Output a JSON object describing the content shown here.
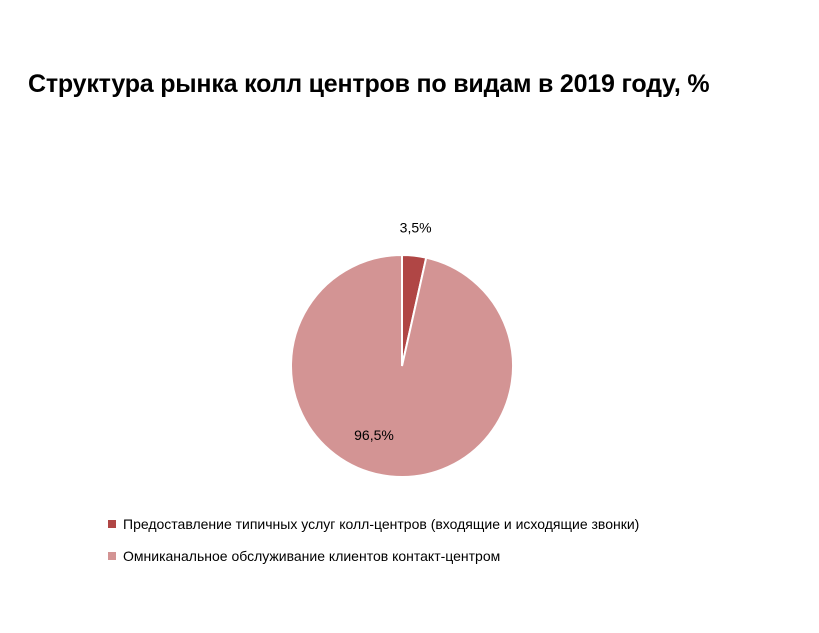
{
  "chart_data": {
    "type": "pie",
    "title": "Структура рынка колл центров по видам в 2019 году, %",
    "slices": [
      {
        "name": "Предоставление типичных услуг колл-центров (входящие и исходящие звонки)",
        "value": 3.5,
        "label": "3,5%",
        "color": "#b04645"
      },
      {
        "name": "Омниканальное обслуживание клиентов контакт-центром",
        "value": 96.5,
        "label": "96,5%",
        "color": "#d39494"
      }
    ],
    "start_angle": "12 o'clock, clockwise",
    "legend": "bottom-left"
  }
}
